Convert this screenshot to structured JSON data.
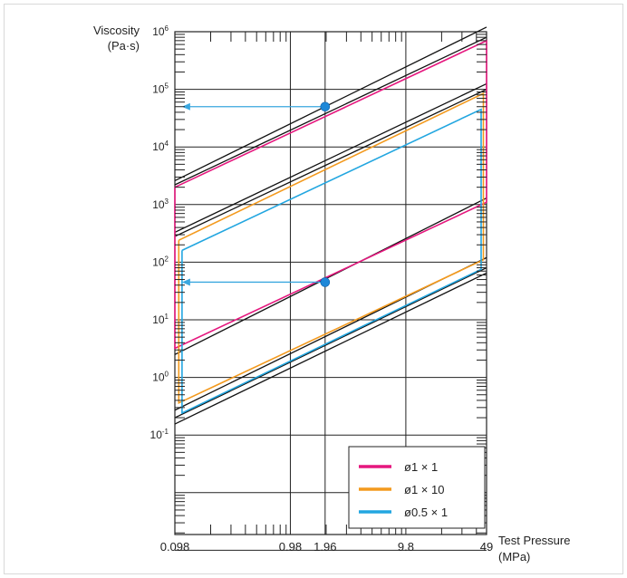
{
  "chart_data": {
    "type": "line",
    "x_axis": {
      "label": "Test Pressure",
      "unit": "(MPa)",
      "scale": "log",
      "range": [
        0.098,
        49
      ],
      "tick_labels": [
        "0.098",
        "0.98",
        "1.96",
        "9.8",
        "49"
      ],
      "tick_values": [
        0.098,
        0.98,
        1.96,
        9.8,
        49
      ]
    },
    "y_axis": {
      "label": "Viscosity",
      "unit": "(Pa·s)",
      "scale": "log",
      "range": [
        0.001,
        1000000
      ],
      "tick_labels": [
        {
          "base": "10",
          "exp": "6",
          "value": 1000000
        },
        {
          "base": "10",
          "exp": "5",
          "value": 100000
        },
        {
          "base": "10",
          "exp": "4",
          "value": 10000
        },
        {
          "base": "10",
          "exp": "3",
          "value": 1000
        },
        {
          "base": "10",
          "exp": "2",
          "value": 100
        },
        {
          "base": "10",
          "exp": "1",
          "value": 10
        },
        {
          "base": "10",
          "exp": "0",
          "value": 1
        },
        {
          "base": "10",
          "exp": "-1",
          "value": 0.1
        }
      ]
    },
    "grid": true,
    "legend_position": "bottom-right",
    "series": [
      {
        "name": "ø1 × 1",
        "color": "#e5177e",
        "points": [
          [
            0.098,
            2000
          ],
          [
            0.098,
            3.2
          ],
          [
            49,
            1100
          ],
          [
            49,
            700000
          ],
          [
            0.098,
            2000
          ]
        ]
      },
      {
        "name": "ø1 × 10",
        "color": "#f39a1e",
        "points": [
          [
            0.106,
            240
          ],
          [
            0.106,
            0.36
          ],
          [
            46,
            110
          ],
          [
            46,
            85000
          ],
          [
            0.106,
            240
          ]
        ]
      },
      {
        "name": "ø0.5 × 1",
        "color": "#22a6e0",
        "points": [
          [
            0.113,
            160
          ],
          [
            0.113,
            0.24
          ],
          [
            44,
            75
          ],
          [
            44,
            45000
          ],
          [
            0.113,
            160
          ]
        ]
      }
    ],
    "boundary_lines": [
      [
        [
          0.098,
          2600
        ],
        [
          49,
          1200000
        ]
      ],
      [
        [
          0.098,
          2200
        ],
        [
          49,
          800000
        ]
      ],
      [
        [
          0.098,
          330
        ],
        [
          49,
          125000
        ]
      ],
      [
        [
          0.098,
          280
        ],
        [
          49,
          100000
        ]
      ],
      [
        [
          0.098,
          2.5
        ],
        [
          49,
          1300
        ]
      ],
      [
        [
          0.098,
          0.27
        ],
        [
          49,
          120
        ]
      ],
      [
        [
          0.098,
          0.2
        ],
        [
          49,
          80
        ]
      ],
      [
        [
          0.098,
          0.155
        ],
        [
          49,
          65
        ]
      ]
    ],
    "markers": [
      {
        "x": 1.96,
        "y": 50000,
        "color": "#1e88d8"
      },
      {
        "x": 1.96,
        "y": 45,
        "color": "#1e88d8"
      }
    ],
    "arrows": [
      {
        "from": [
          1.96,
          50000
        ],
        "to": [
          0.113,
          50000
        ],
        "color": "#3aa7df"
      },
      {
        "from": [
          1.96,
          45
        ],
        "to": [
          0.113,
          45
        ],
        "color": "#3aa7df"
      }
    ]
  }
}
